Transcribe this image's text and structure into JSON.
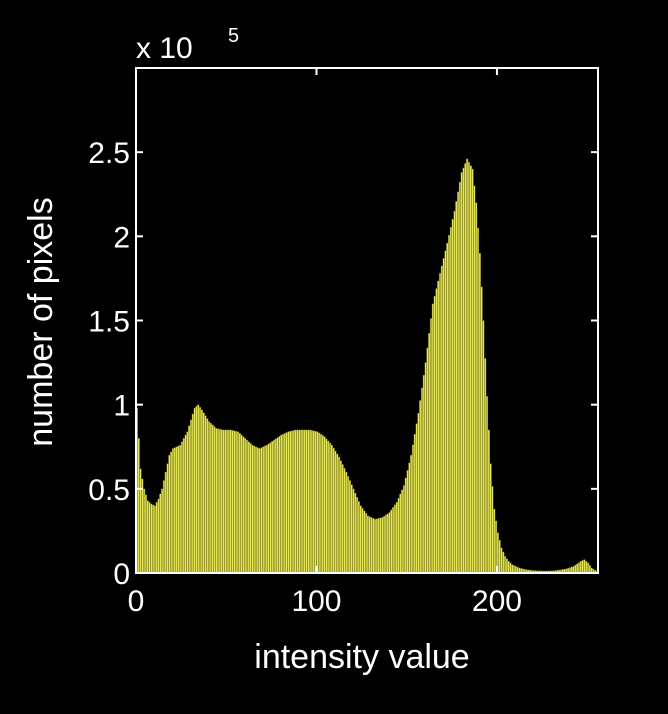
{
  "chart_data": {
    "type": "bar",
    "title": "",
    "xlabel": "intensity value",
    "ylabel": "number of pixels",
    "multiplier_base": "x 10",
    "multiplier_exponent": "5",
    "xlim": [
      0,
      256
    ],
    "ylim": [
      0,
      300000
    ],
    "xticks": [
      0,
      100,
      200
    ],
    "xtick_labels": [
      "0",
      "100",
      "200"
    ],
    "yticks": [
      0,
      50000,
      100000,
      150000,
      200000,
      250000
    ],
    "ytick_labels": [
      "0",
      "0.5",
      "1",
      "1.5",
      "2",
      "2.5"
    ],
    "grid": false,
    "legend": "none",
    "bar_color": "#e6e65a",
    "edge_color": "#555500",
    "background": "#000000",
    "axes_color": "#ffffff",
    "profile_x": [
      0,
      2,
      4,
      6,
      8,
      10,
      12,
      14,
      16,
      18,
      20,
      24,
      28,
      32,
      34,
      36,
      40,
      44,
      48,
      52,
      56,
      60,
      64,
      68,
      72,
      76,
      80,
      84,
      88,
      92,
      96,
      100,
      104,
      108,
      112,
      116,
      120,
      124,
      128,
      132,
      136,
      140,
      144,
      148,
      152,
      156,
      160,
      164,
      168,
      172,
      176,
      180,
      183,
      186,
      188,
      190,
      192,
      194,
      196,
      198,
      200,
      202,
      204,
      206,
      208,
      212,
      216,
      220,
      226,
      232,
      238,
      242,
      246,
      248,
      250,
      252,
      255
    ],
    "profile_y": [
      98000,
      62000,
      50000,
      43000,
      41000,
      40000,
      44000,
      50000,
      60000,
      70000,
      74000,
      76000,
      84000,
      98000,
      100000,
      97000,
      90000,
      86000,
      85000,
      85000,
      84000,
      80000,
      76000,
      74000,
      76000,
      79000,
      82000,
      84000,
      85000,
      85000,
      85000,
      84000,
      81000,
      76000,
      69000,
      60000,
      50000,
      40000,
      34000,
      32000,
      33000,
      36000,
      42000,
      52000,
      70000,
      95000,
      125000,
      160000,
      178000,
      196000,
      215000,
      238000,
      246000,
      240000,
      220000,
      190000,
      150000,
      105000,
      65000,
      38000,
      24000,
      15000,
      10000,
      7000,
      5000,
      3000,
      2000,
      1500,
      1200,
      1500,
      2500,
      4000,
      7000,
      8000,
      6000,
      3000,
      1000
    ]
  }
}
